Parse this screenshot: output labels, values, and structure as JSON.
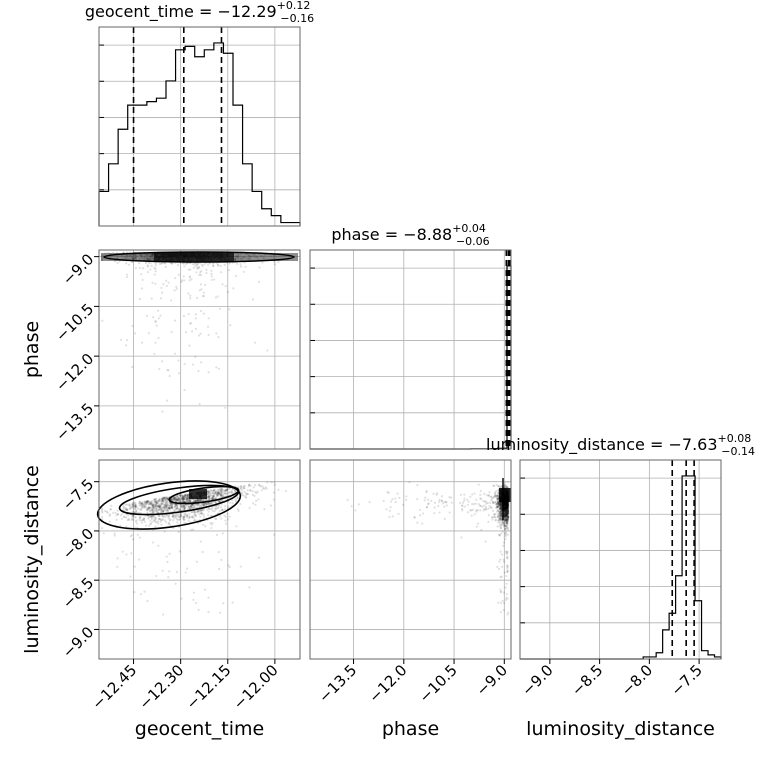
{
  "chart_data": {
    "type": "corner",
    "params": [
      "geocent_time",
      "phase",
      "luminosity_distance"
    ],
    "titles": {
      "geocent_time": {
        "prefix": "geocent_time = ",
        "median": "−12.29",
        "plus": "+0.12",
        "minus": "−0.16"
      },
      "phase": {
        "prefix": "phase = ",
        "median": "−8.88",
        "plus": "+0.04",
        "minus": "−0.06"
      },
      "luminosity_distance": {
        "prefix": "luminosity_distance = ",
        "median": "−7.63",
        "plus": "+0.08",
        "minus": "−0.14"
      }
    },
    "axis_labels": {
      "geocent_time": "geocent_time",
      "phase": "phase",
      "luminosity_distance": "luminosity_distance"
    },
    "ranges": {
      "geocent_time": [
        -12.56,
        -11.92
      ],
      "phase": [
        -14.8,
        -8.8
      ],
      "luminosity_distance": [
        -9.3,
        -7.28
      ]
    },
    "ticks": {
      "geocent_time": {
        "values": [
          -12.45,
          -12.3,
          -12.15,
          -12.0
        ],
        "labels": [
          "−12.45",
          "−12.30",
          "−12.15",
          "−12.00"
        ]
      },
      "phase": {
        "values": [
          -13.5,
          -12.0,
          -10.5,
          -9.0
        ],
        "labels": [
          "−13.5",
          "−12.0",
          "−10.5",
          "−9.0"
        ]
      },
      "luminosity_distance": {
        "values": [
          -9.0,
          -8.5,
          -8.0,
          -7.5
        ],
        "labels": [
          "−9.0",
          "−8.5",
          "−8.0",
          "−7.5"
        ]
      }
    },
    "quantiles": {
      "geocent_time": [
        -12.45,
        -12.29,
        -12.17
      ],
      "phase": [
        -8.94,
        -8.88,
        -8.84
      ],
      "luminosity_distance": [
        -7.77,
        -7.63,
        -7.55
      ]
    },
    "hist": {
      "geocent_time": {
        "edges_range": [
          -12.56,
          -11.92
        ],
        "counts": [
          10,
          18,
          28,
          35,
          35,
          36,
          37,
          42,
          51,
          52,
          49,
          51,
          53,
          50,
          35,
          18,
          10,
          5,
          3,
          1,
          1
        ]
      },
      "phase": {
        "edges_range": [
          -14.8,
          -8.8
        ],
        "counts": [
          0,
          0,
          0,
          0,
          0,
          0,
          0,
          0,
          0,
          0,
          0,
          0,
          0,
          0,
          0,
          0,
          0,
          0,
          0,
          0,
          0,
          0,
          0,
          0,
          0,
          0,
          0,
          0,
          0,
          0,
          0,
          0,
          0,
          0,
          0,
          0,
          0,
          0,
          0,
          0,
          1,
          1,
          1,
          1,
          1,
          2,
          2,
          3,
          4,
          900
        ]
      },
      "luminosity_distance": {
        "edges_range": [
          -9.3,
          -7.28
        ],
        "counts": [
          0,
          0,
          0,
          0,
          0,
          0,
          0,
          0,
          0,
          0,
          0,
          0,
          0,
          0,
          0,
          0,
          0,
          0,
          0,
          1,
          1,
          3,
          14,
          22,
          40,
          88,
          88,
          28,
          4,
          2,
          1
        ]
      }
    },
    "grid": true
  }
}
